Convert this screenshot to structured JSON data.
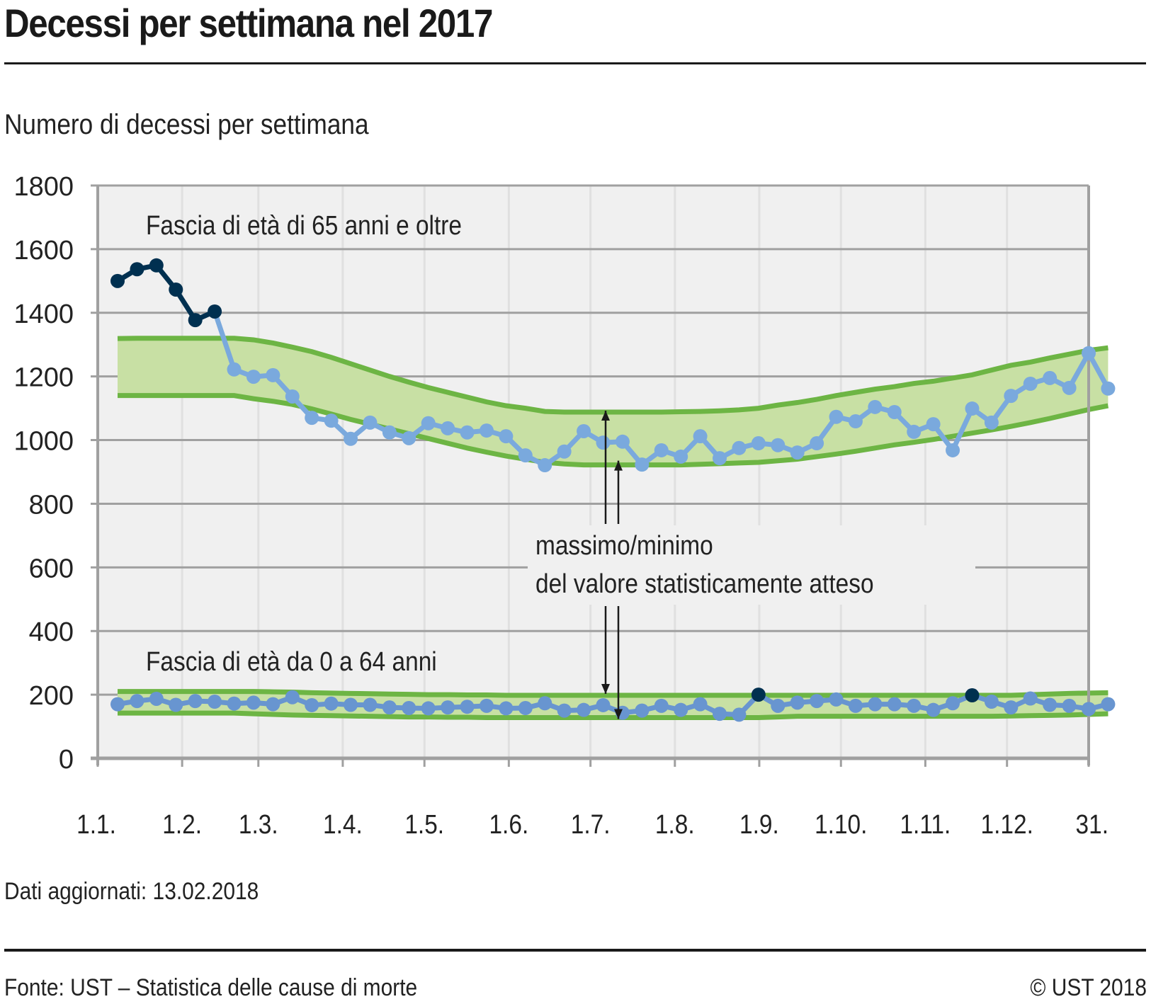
{
  "header": {
    "title": "Decessi per settimana nel 2017",
    "subtitle": "Numero di decessi per settimana"
  },
  "footer": {
    "updated": "Dati aggiornati: 13.02.2018",
    "source": "Fonte: UST – Statistica delle cause di morte",
    "copyright": "© UST 2018"
  },
  "colors": {
    "series_normal": "#7aa9dd",
    "series_excess": "#003050",
    "band_fill": "#c8e0a4",
    "band_line": "#6db544",
    "plot_bg": "#f0f0f0",
    "grid_major": "#a0a0a0",
    "grid_minor": "#e0e0e0"
  },
  "chart_data": {
    "type": "line",
    "title": "Decessi per settimana nel 2017",
    "ylabel": "Numero di decessi per settimana",
    "xlabel": "",
    "ylim": [
      0,
      1800
    ],
    "yticks": [
      0,
      200,
      400,
      600,
      800,
      1000,
      1200,
      1400,
      1600,
      1800
    ],
    "xticks": [
      "1.1.",
      "1.2.",
      "1.3.",
      "1.4.",
      "1.5.",
      "1.6.",
      "1.7.",
      "1.8.",
      "1.9.",
      "1.10.",
      "1.11.",
      "1.12.",
      "31.12."
    ],
    "xtick_days": [
      0,
      31,
      59,
      90,
      120,
      151,
      181,
      212,
      243,
      273,
      304,
      334,
      364
    ],
    "xtick_labels_display": [
      "1.1.",
      "1.2.",
      "1.3.",
      "1.4.",
      "1.5.",
      "1.6.",
      "1.7.",
      "1.8.",
      "1.9.",
      "1.10.",
      "1.11.",
      "1.12.",
      "31."
    ],
    "grid": true,
    "weeks": 52,
    "annotations": {
      "upper_group": "Fascia di età di 65 anni e oltre",
      "lower_group": "Fascia di età da 0 a 64 anni",
      "band_line1": "massimo/minimo",
      "band_line2": "del valore statisticamente atteso"
    },
    "series": [
      {
        "name": "Fascia di età di 65 anni e oltre",
        "values": [
          1500,
          1537,
          1549,
          1473,
          1377,
          1404,
          1222,
          1199,
          1204,
          1137,
          1070,
          1061,
          1004,
          1055,
          1024,
          1006,
          1053,
          1037,
          1024,
          1030,
          1012,
          952,
          921,
          964,
          1028,
          992,
          995,
          923,
          968,
          948,
          1012,
          943,
          975,
          990,
          984,
          961,
          990,
          1073,
          1059,
          1104,
          1088,
          1026,
          1050,
          968,
          1099,
          1055,
          1139,
          1177,
          1195,
          1164,
          1273,
          1162
        ],
        "excess_weeks": [
          0,
          1,
          2,
          3,
          4,
          5
        ],
        "band_max": [
          1319,
          1320,
          1320,
          1320,
          1320,
          1320,
          1320,
          1315,
          1305,
          1292,
          1278,
          1260,
          1240,
          1220,
          1200,
          1182,
          1165,
          1150,
          1135,
          1120,
          1108,
          1100,
          1090,
          1088,
          1088,
          1088,
          1088,
          1088,
          1088,
          1089,
          1090,
          1092,
          1095,
          1100,
          1110,
          1118,
          1128,
          1140,
          1150,
          1160,
          1168,
          1178,
          1185,
          1195,
          1205,
          1220,
          1235,
          1245,
          1258,
          1270,
          1282,
          1290
        ],
        "band_min": [
          1140,
          1140,
          1140,
          1140,
          1140,
          1140,
          1140,
          1130,
          1122,
          1112,
          1098,
          1082,
          1065,
          1050,
          1035,
          1020,
          1005,
          990,
          975,
          962,
          950,
          940,
          930,
          925,
          922,
          922,
          922,
          922,
          922,
          922,
          924,
          926,
          928,
          930,
          935,
          940,
          948,
          956,
          965,
          975,
          985,
          993,
          1002,
          1012,
          1022,
          1032,
          1043,
          1055,
          1068,
          1082,
          1096,
          1108
        ]
      },
      {
        "name": "Fascia di età da 0 a 64 anni",
        "values": [
          170,
          180,
          187,
          168,
          180,
          178,
          172,
          175,
          170,
          192,
          167,
          172,
          168,
          168,
          160,
          158,
          157,
          160,
          162,
          165,
          157,
          158,
          173,
          150,
          152,
          167,
          143,
          150,
          165,
          152,
          170,
          140,
          137,
          200,
          165,
          175,
          180,
          185,
          165,
          170,
          170,
          165,
          152,
          173,
          198,
          178,
          160,
          188,
          168,
          165,
          155,
          170
        ],
        "excess_weeks": [
          33,
          44
        ],
        "band_max": [
          210,
          210,
          210,
          210,
          210,
          210,
          210,
          210,
          209,
          208,
          206,
          205,
          204,
          203,
          202,
          201,
          200,
          200,
          199,
          199,
          198,
          198,
          198,
          198,
          198,
          198,
          198,
          198,
          198,
          198,
          198,
          198,
          198,
          198,
          198,
          198,
          198,
          198,
          198,
          198,
          198,
          198,
          198,
          198,
          198,
          198,
          198,
          200,
          202,
          204,
          205,
          206
        ],
        "band_min": [
          142,
          142,
          142,
          142,
          142,
          142,
          142,
          140,
          138,
          136,
          135,
          134,
          133,
          132,
          131,
          130,
          130,
          129,
          129,
          128,
          128,
          128,
          128,
          128,
          128,
          128,
          128,
          128,
          128,
          128,
          128,
          128,
          128,
          128,
          130,
          132,
          132,
          132,
          132,
          132,
          132,
          132,
          132,
          132,
          132,
          132,
          133,
          134,
          135,
          136,
          138,
          140
        ]
      }
    ],
    "legend": "inline annotations"
  }
}
